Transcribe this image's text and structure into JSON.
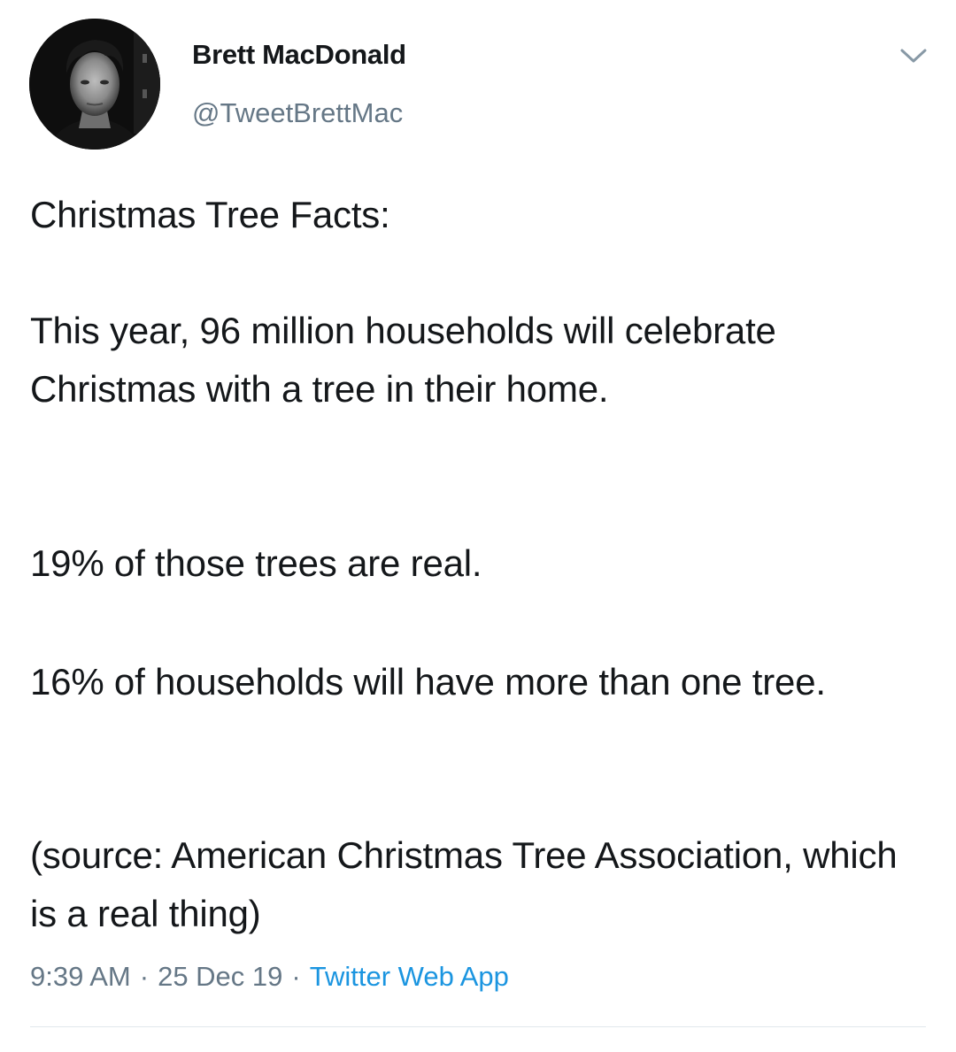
{
  "tweet": {
    "author": {
      "display_name": "Brett MacDonald",
      "handle": "@TweetBrettMac",
      "avatar_icon": "profile-photo"
    },
    "menu_icon": "chevron-down-icon",
    "paragraphs": [
      "Christmas Tree Facts:",
      "This year, 96 million households will celebrate Christmas with a tree in their home.",
      "19% of those trees are real.",
      "16% of households will have more than one tree.",
      "(source: American Christmas Tree Association, which is a real thing)"
    ],
    "time": "9:39 AM",
    "separator": "·",
    "date": "25 Dec 19",
    "source_app": "Twitter Web App"
  },
  "colors": {
    "text": "#14171a",
    "secondary": "#657786",
    "link": "#1b95e0",
    "divider": "#e1e8ed"
  }
}
